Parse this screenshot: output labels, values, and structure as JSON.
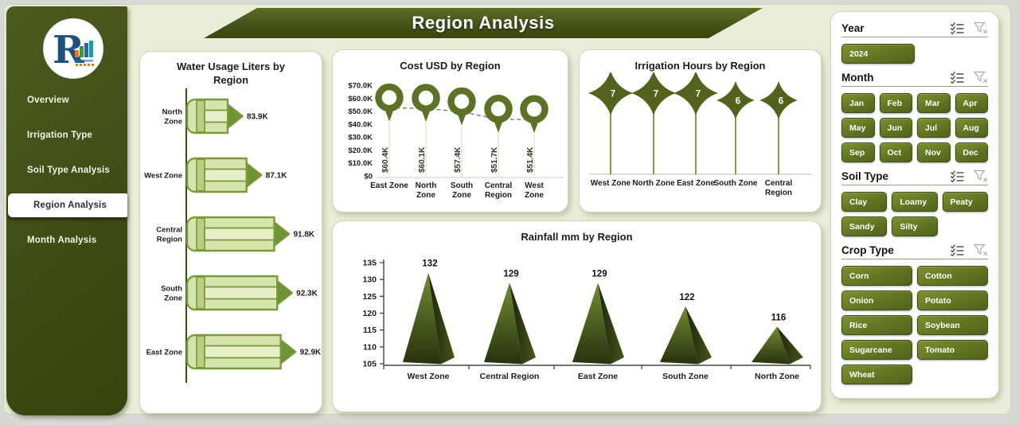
{
  "title": "Region Analysis",
  "sidebar": {
    "items": [
      {
        "label": "Overview",
        "active": false
      },
      {
        "label": "Irrigation Type",
        "active": false
      },
      {
        "label": "Soil Type Analysis",
        "active": false
      },
      {
        "label": "Region Analysis",
        "active": true
      },
      {
        "label": "Month Analysis",
        "active": false
      }
    ]
  },
  "filters": {
    "year": {
      "label": "Year",
      "options": [
        "2024"
      ]
    },
    "month": {
      "label": "Month",
      "options": [
        "Jan",
        "Feb",
        "Mar",
        "Apr",
        "May",
        "Jun",
        "Jul",
        "Aug",
        "Sep",
        "Oct",
        "Nov",
        "Dec"
      ]
    },
    "soil_type": {
      "label": "Soil Type",
      "options": [
        "Clay",
        "Loamy",
        "Peaty",
        "Sandy",
        "Silty"
      ]
    },
    "crop_type": {
      "label": "Crop Type",
      "options": [
        "Corn",
        "Cotton",
        "Onion",
        "Potato",
        "Rice",
        "Soybean",
        "Sugarcane",
        "Tomato",
        "Wheat"
      ]
    }
  },
  "colors": {
    "sidebar_dark": "#3f4c16",
    "banner": "#47561b",
    "accent_button": "#5f7322",
    "page_bg": "#e9eed9",
    "card_bg": "#fffffd",
    "text_dark": "#1c1c1c",
    "pencil_fill": "#d7e4ae",
    "pencil_mid": "#e6efc8",
    "pencil_ferrule": "#b9cf80",
    "pencil_outline": "#7a9b3c",
    "pencil_tip": "#6f9434",
    "pin": "#5d7226",
    "star": "#51631d",
    "stem": "#6c7f2a",
    "pyramid_light": "#748b34",
    "pyramid_dark": "#26320d"
  },
  "chart_data": [
    {
      "type": "bar",
      "subtype": "pencil-horizontal",
      "title": "Water Usage Liters by Region",
      "categories": [
        "North Zone",
        "West Zone",
        "Central Region",
        "South Zone",
        "East Zone"
      ],
      "tick_labels": [
        "North|Zone",
        "West Zone",
        "Central|Region",
        "South|Zone",
        "East Zone"
      ],
      "values": [
        83.9,
        87.1,
        91.8,
        92.3,
        92.9
      ],
      "value_labels": [
        "83.9K",
        "87.1K",
        "91.8K",
        "92.3K",
        "92.9K"
      ],
      "unit": "K liters"
    },
    {
      "type": "scatter",
      "subtype": "map-pin-lollipop",
      "title": "Cost USD by Region",
      "categories": [
        "East Zone",
        "North Zone",
        "South Zone",
        "Central Region",
        "West Zone"
      ],
      "tick_labels": [
        "East Zone",
        "North|Zone",
        "South|Zone",
        "Central|Region",
        "West|Zone"
      ],
      "values": [
        60.4,
        60.1,
        57.4,
        51.7,
        51.4
      ],
      "value_labels": [
        "$60.4K",
        "$60.1K",
        "$57.4K",
        "$51.7K",
        "$51.4K"
      ],
      "ylim": [
        0,
        70
      ],
      "yticks": [
        0,
        10,
        20,
        30,
        40,
        50,
        60,
        70
      ],
      "ytick_labels": [
        "$0",
        "$10.0K",
        "$20.0K",
        "$30.0K",
        "$40.0K",
        "$50.0K",
        "$60.0K",
        "$70.0K"
      ],
      "connector": "dashed"
    },
    {
      "type": "scatter",
      "subtype": "star-lollipop",
      "title": "Irrigation Hours by Region",
      "categories": [
        "West Zone",
        "North Zone",
        "East Zone",
        "South Zone",
        "Central Region"
      ],
      "tick_labels": [
        "West Zone",
        "North Zone",
        "East Zone",
        "South Zone",
        "Central|Region"
      ],
      "values": [
        7,
        7,
        7,
        6,
        6
      ],
      "value_labels": [
        "7",
        "7",
        "7",
        "6",
        "6"
      ]
    },
    {
      "type": "bar",
      "subtype": "pyramid",
      "title": "Rainfall mm by Region",
      "categories": [
        "West Zone",
        "Central Region",
        "East Zone",
        "South Zone",
        "North Zone"
      ],
      "values": [
        132,
        129,
        129,
        122,
        116
      ],
      "value_labels": [
        "132",
        "129",
        "129",
        "122",
        "116"
      ],
      "ylim": [
        105,
        135
      ],
      "yticks": [
        105,
        110,
        115,
        120,
        125,
        130,
        135
      ]
    }
  ]
}
